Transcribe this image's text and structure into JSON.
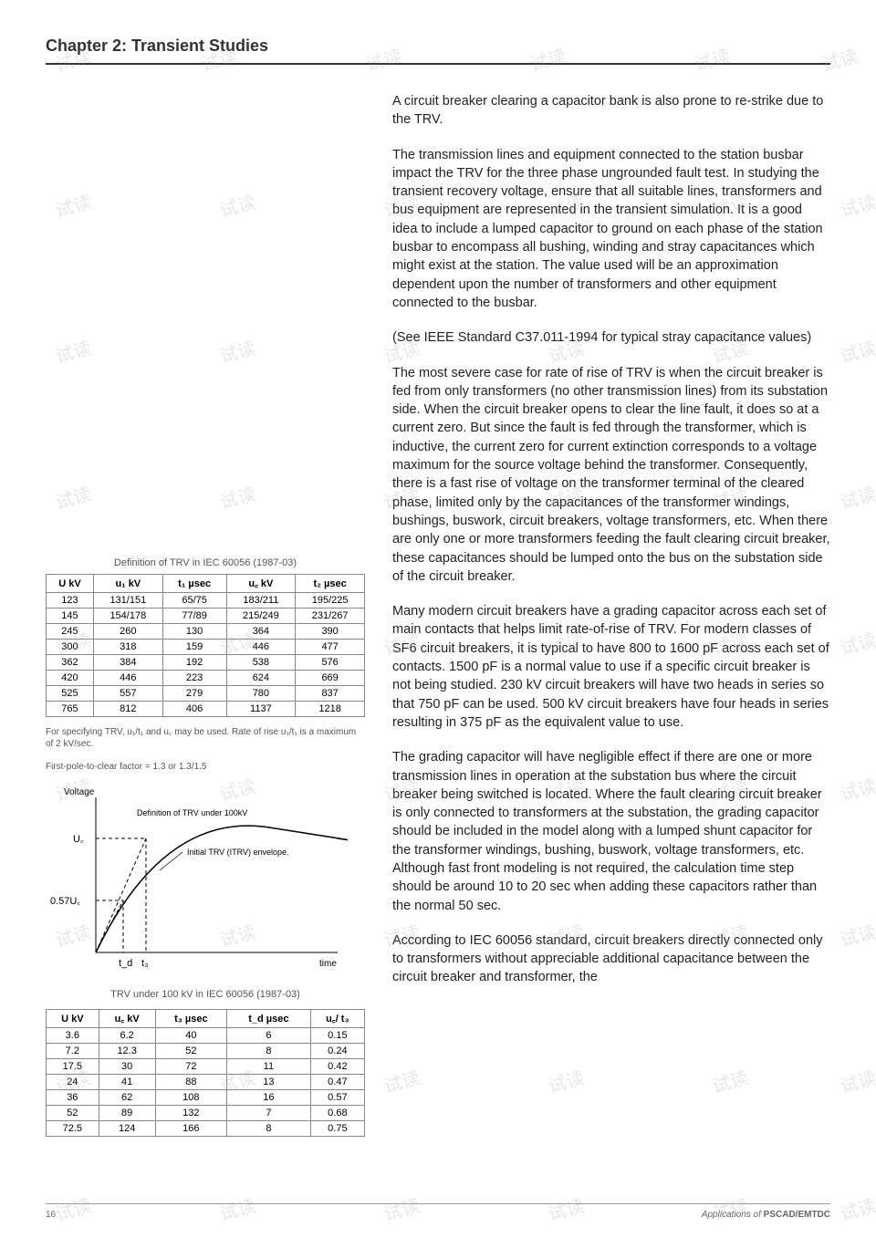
{
  "chapter_title": "Chapter 2: Transient Studies",
  "paragraphs": {
    "p1": "A circuit breaker clearing a capacitor bank is also prone to re-strike due to the TRV.",
    "p2": "The transmission lines and equipment connected to the station busbar impact the TRV for the three phase ungrounded fault test. In studying the transient recovery voltage, ensure that all suitable lines, transformers and bus equipment are represented in the transient simulation. It is a good idea to include a lumped capacitor to ground on each phase of the station busbar to encompass all bushing, winding and stray capacitances which might exist at the station. The value used will be an approximation dependent upon the number of transformers and other equipment connected to the busbar.",
    "p3": "(See IEEE Standard C37.011-1994 for typical stray capacitance values)",
    "p4": "The most severe case for rate of rise of TRV is when the circuit breaker is fed from only transformers (no other transmission lines) from its substation side. When the circuit breaker opens to clear the line fault, it does so at a current zero. But since the fault is fed through the transformer, which is inductive, the current zero for current extinction corresponds to a voltage maximum for the source voltage behind the transformer. Consequently, there is a fast rise of voltage on the transformer terminal of the cleared phase, limited only by the capacitances of the transformer windings, bushings, buswork, circuit breakers, voltage transformers, etc. When there are only one or more transformers feeding the fault clearing circuit breaker, these capacitances should be lumped onto the bus on the substation side of the circuit breaker.",
    "p5": "Many modern circuit breakers have a grading capacitor across each set of main contacts that helps limit rate-of-rise of TRV. For modern classes of SF6 circuit breakers, it is typical to have 800 to 1600 pF across each set of contacts. 1500 pF is a normal value to use if a specific circuit breaker is not being studied. 230 kV circuit breakers will have two heads in series so that 750 pF can be used. 500 kV circuit breakers have four heads in series resulting in 375 pF as the equivalent value to use.",
    "p6": "The grading capacitor will have negligible effect if there are one or more transmission lines in operation at the substation bus where the circuit breaker being switched is located. Where the fault clearing circuit breaker is only connected to transformers at the substation, the grading capacitor should be included in the model along with a lumped shunt capacitor for the transformer windings, bushing, buswork, voltage transformers, etc. Although fast front modeling is not required, the calculation time step should be around 10 to 20 sec when adding these capacitors rather than the normal 50 sec.",
    "p7": "According to IEC 60056 standard, circuit breakers directly connected only to transformers without appreciable additional capacitance between the circuit breaker and transformer, the"
  },
  "table1": {
    "caption": "Definition of TRV in IEC 60056 (1987-03)",
    "headers": [
      "U kV",
      "u₁ kV",
      "t₁ µsec",
      "u꜀ kV",
      "t₂ µsec"
    ],
    "rows": [
      [
        "123",
        "131/151",
        "65/75",
        "183/211",
        "195/225"
      ],
      [
        "145",
        "154/178",
        "77/89",
        "215/249",
        "231/267"
      ],
      [
        "245",
        "260",
        "130",
        "364",
        "390"
      ],
      [
        "300",
        "318",
        "159",
        "446",
        "477"
      ],
      [
        "362",
        "384",
        "192",
        "538",
        "576"
      ],
      [
        "420",
        "446",
        "223",
        "624",
        "669"
      ],
      [
        "525",
        "557",
        "279",
        "780",
        "837"
      ],
      [
        "765",
        "812",
        "406",
        "1137",
        "1218"
      ]
    ]
  },
  "notes": {
    "n1": "For specifying TRV, u₁/t₁ and u꜀ may be used. Rate of rise u₁/t₁ is a maximum of 2 kV/sec.",
    "n2": "First-pole-to-clear factor = 1.3 or 1.3/1.5"
  },
  "chart": {
    "label_voltage": "Voltage",
    "label_def": "Definition of TRV under 100kV",
    "label_env": "Initial TRV (ITRV) envelope.",
    "label_uc": "U꜀",
    "label_057uc": "0.57U꜀",
    "label_td": "t_d",
    "label_t3": "t₃",
    "label_time": "time",
    "caption": "TRV under 100 kV in IEC 60056 (1987-03)",
    "line_color": "#000000",
    "dash_color": "#000000",
    "background": "#ffffff"
  },
  "table2": {
    "headers": [
      "U kV",
      "u꜀ kV",
      "t₃ µsec",
      "t_d µsec",
      "u꜀/ t₃"
    ],
    "rows": [
      [
        "3.6",
        "6.2",
        "40",
        "6",
        "0.15"
      ],
      [
        "7.2",
        "12.3",
        "52",
        "8",
        "0.24"
      ],
      [
        "17.5",
        "30",
        "72",
        "11",
        "0.42"
      ],
      [
        "24",
        "41",
        "88",
        "13",
        "0.47"
      ],
      [
        "36",
        "62",
        "108",
        "16",
        "0.57"
      ],
      [
        "52",
        "89",
        "132",
        "7",
        "0.68"
      ],
      [
        "72.5",
        "124",
        "166",
        "8",
        "0.75"
      ]
    ]
  },
  "footer": {
    "page": "16",
    "app_of": "Applications of ",
    "product": "PSCAD/EMTDC"
  },
  "watermark_text": "试读"
}
